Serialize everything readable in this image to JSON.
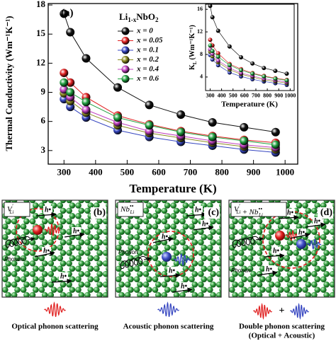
{
  "chart_data": [
    {
      "type": "line",
      "annotation": "(a)",
      "x_label": "Temperature (K)",
      "y_label": "Thermal Conductivity (Wm⁻¹K⁻¹)",
      "legend_title": [
        "Li",
        "1-x",
        "NbO",
        "2"
      ],
      "x": [
        300,
        320,
        370,
        470,
        570,
        670,
        770,
        870,
        970
      ],
      "xlim": [
        250,
        1040
      ],
      "xticks": [
        300,
        400,
        500,
        600,
        700,
        800,
        900,
        1000
      ],
      "ylim": [
        1.6,
        18.15
      ],
      "yticks": [
        3,
        6,
        9,
        12,
        15,
        18
      ],
      "series": [
        {
          "name": "x = 0",
          "color": "#111111",
          "values": [
            17.1,
            15.2,
            12.5,
            9.5,
            7.7,
            6.7,
            5.9,
            5.4,
            4.9
          ]
        },
        {
          "name": "x = 0.05",
          "color": "#e02020",
          "values": [
            11.0,
            10.0,
            8.5,
            6.6,
            5.7,
            5.0,
            4.5,
            4.1,
            3.8
          ]
        },
        {
          "name": "x = 0.1",
          "color": "#3545c0",
          "values": [
            8.3,
            7.5,
            6.4,
            5.1,
            4.4,
            3.9,
            3.5,
            3.1,
            2.8
          ]
        },
        {
          "name": "x = 0.2",
          "color": "#8c8c22",
          "values": [
            8.9,
            8.1,
            6.9,
            5.6,
            4.8,
            4.3,
            3.8,
            3.4,
            3.1
          ]
        },
        {
          "name": "x = 0.4",
          "color": "#c040c0",
          "values": [
            9.3,
            8.5,
            7.2,
            5.9,
            5.0,
            4.5,
            4.0,
            3.6,
            3.3
          ]
        },
        {
          "name": "x = 0.6",
          "color": "#20a040",
          "values": [
            10.0,
            9.0,
            8.0,
            6.4,
            5.6,
            4.9,
            4.4,
            4.0,
            3.6
          ]
        }
      ]
    },
    {
      "type": "line",
      "x_label": "Temperature (K)",
      "y_label": [
        "K",
        "L",
        "(Wm⁻¹K⁻¹)"
      ],
      "x": [
        300,
        320,
        370,
        470,
        570,
        670,
        770,
        870,
        970
      ],
      "xlim": [
        260,
        1035
      ],
      "xticks": [
        300,
        400,
        500,
        600,
        700,
        800,
        900,
        1000
      ],
      "ylim": [
        1.6,
        16.9
      ],
      "yticks": [
        4,
        8,
        12,
        16
      ],
      "series": [
        {
          "color": "#111111",
          "values": [
            16.6,
            14.6,
            12.2,
            9.4,
            7.5,
            6.4,
            5.6,
            5.1,
            4.6
          ]
        },
        {
          "color": "#e02020",
          "values": [
            10.6,
            9.6,
            8.2,
            6.3,
            5.4,
            4.7,
            4.2,
            3.8,
            3.5
          ]
        },
        {
          "color": "#3545c0",
          "values": [
            7.9,
            7.1,
            6.1,
            4.8,
            4.1,
            3.6,
            3.2,
            2.9,
            2.6
          ]
        },
        {
          "color": "#8c8c22",
          "values": [
            8.5,
            7.7,
            6.6,
            5.3,
            4.5,
            4.0,
            3.5,
            3.2,
            2.9
          ]
        },
        {
          "color": "#c040c0",
          "values": [
            8.9,
            8.1,
            6.9,
            5.6,
            4.7,
            4.2,
            3.7,
            3.4,
            3.1
          ]
        },
        {
          "color": "#20a040",
          "values": [
            9.6,
            8.6,
            7.6,
            6.1,
            5.2,
            4.6,
            4.1,
            3.7,
            3.4
          ]
        }
      ]
    }
  ],
  "panels": [
    {
      "tag": "(b)",
      "defect": [
        [
          "V",
          "′",
          "Li"
        ]
      ],
      "holes": [
        "h•",
        "h•",
        "h•",
        "h•"
      ],
      "phonon": "Phonon",
      "caption": [
        "Optical phonon scattering"
      ]
    },
    {
      "tag": "(c)",
      "defect": [
        [
          "Nb",
          "••",
          "Li"
        ]
      ],
      "holes": [
        "h•",
        "h•",
        "h•",
        "h•",
        "h•"
      ],
      "phonon": "Phonon",
      "caption": [
        "Acoustic phonon scattering"
      ]
    },
    {
      "tag": "(d)",
      "defect": [
        [
          "V",
          "′",
          "Li"
        ],
        [
          "Nb",
          "••",
          "Li"
        ]
      ],
      "defect_join": "+",
      "holes": [
        "h•",
        "h•",
        "h•",
        "h•",
        "h•"
      ],
      "phonon": "Phonon",
      "wave_join": "+",
      "caption": [
        "Double phonon scattering",
        "(Optical + Acoustic)"
      ]
    }
  ]
}
